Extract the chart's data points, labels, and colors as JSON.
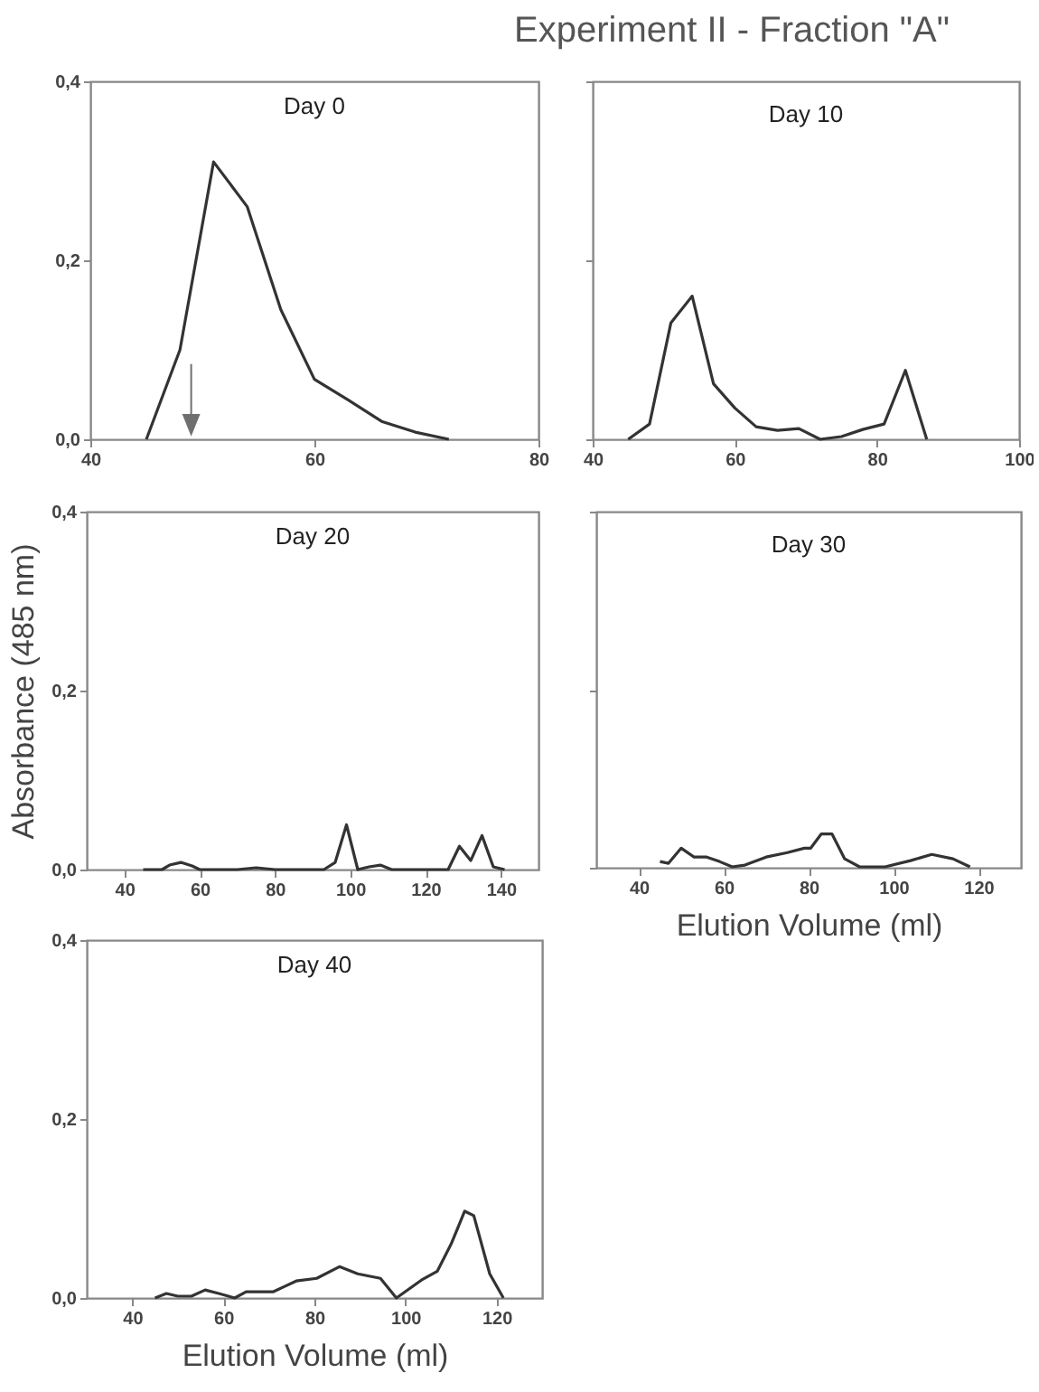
{
  "chart_data": [
    {
      "type": "line",
      "title": "Day 0",
      "annotations": [
        "Experiment II - Fraction \"A\""
      ],
      "x": [
        45,
        48,
        51,
        54,
        57,
        60,
        63,
        66,
        69,
        72
      ],
      "values": [
        0,
        0.1,
        0.31,
        0.26,
        0.145,
        0.067,
        0.044,
        0.02,
        0.008,
        0
      ],
      "color": "#333333",
      "xlim": [
        40,
        80
      ],
      "xticks": [
        40,
        60,
        80
      ],
      "ylim": [
        0,
        0.4
      ],
      "yticks": [
        {
          "value": 0,
          "label": "0,0"
        },
        {
          "value": 0.2,
          "label": "0,2"
        },
        {
          "value": 0.4,
          "label": "0,4"
        }
      ]
    },
    {
      "type": "line",
      "title": "Day 10",
      "x": [
        45,
        48,
        51,
        54,
        57,
        60,
        63,
        66,
        69,
        72,
        75,
        78,
        81,
        84,
        87
      ],
      "values": [
        0,
        0.017,
        0.13,
        0.16,
        0.062,
        0.035,
        0.014,
        0.01,
        0.012,
        0,
        0.003,
        0.011,
        0.017,
        0.077,
        0
      ],
      "color": "#333333",
      "xlim": [
        40,
        100
      ],
      "xticks": [
        40,
        60,
        80,
        100
      ],
      "ylim": [
        0,
        0.4
      ],
      "yticks": [
        {
          "value": 0,
          "label": null
        },
        {
          "value": 0.2,
          "label": null
        },
        {
          "value": 0.4,
          "label": null
        }
      ],
      "tick_labels": "x"
    },
    {
      "type": "line",
      "title": "Day 20",
      "ylabel": "Absorbance (485 nm)",
      "x": [
        45,
        50,
        52,
        55,
        58,
        60,
        70,
        75,
        80,
        93,
        96,
        99,
        102,
        105,
        108,
        111,
        126,
        129,
        132,
        135,
        138,
        141
      ],
      "values": [
        0,
        0,
        0.005,
        0.008,
        0.004,
        0,
        0,
        0.002,
        0,
        0,
        0.008,
        0.05,
        0,
        0.003,
        0.005,
        0,
        0,
        0.026,
        0.01,
        0.038,
        0.003,
        0
      ],
      "color": "#333333",
      "xlim": [
        30,
        150
      ],
      "xticks": [
        40,
        60,
        80,
        100,
        120,
        140
      ],
      "ylim": [
        0,
        0.4
      ],
      "yticks": [
        {
          "value": 0,
          "label": "0,0"
        },
        {
          "value": 0.2,
          "label": "0,2"
        },
        {
          "value": 0.4,
          "label": "0,4"
        }
      ]
    },
    {
      "type": "line",
      "title": "Day 30",
      "xlabel": "Elution Volume (ml)",
      "x": [
        45,
        47,
        50,
        53,
        56,
        59,
        62,
        65,
        70,
        75,
        79,
        80.5,
        83,
        85.5,
        88.5,
        92,
        98,
        104,
        109,
        114,
        118
      ],
      "values": [
        0.007,
        0.005,
        0.022,
        0.012,
        0.012,
        0.007,
        0.001,
        0.003,
        0.012,
        0.017,
        0.022,
        0.022,
        0.038,
        0.038,
        0.01,
        0.001,
        0.001,
        0.008,
        0.015,
        0.01,
        0.001
      ],
      "color": "#333333",
      "xlim": [
        30,
        130
      ],
      "xticks": [
        40,
        60,
        80,
        100,
        120
      ],
      "ylim": [
        0,
        0.4
      ],
      "yticks": [
        {
          "value": 0,
          "label": null
        },
        {
          "value": 0.2,
          "label": null
        },
        {
          "value": 0.4,
          "label": null
        }
      ],
      "tick_labels": "x"
    },
    {
      "type": "line",
      "title": "Day 40",
      "xlabel": "Elution Volume (ml)",
      "x": [
        45,
        47.5,
        50,
        53,
        56,
        59,
        62.5,
        65,
        71,
        73.5,
        76,
        80.5,
        85.5,
        89.5,
        94.5,
        98,
        103.5,
        107,
        110,
        113,
        115,
        118.5,
        121.5
      ],
      "values": [
        0,
        0.005,
        0.002,
        0.002,
        0.009,
        0.005,
        0,
        0.007,
        0.007,
        0.013,
        0.019,
        0.022,
        0.035,
        0.027,
        0.022,
        0,
        0.02,
        0.03,
        0.06,
        0.097,
        0.092,
        0.027,
        0
      ],
      "color": "#333333",
      "xlim": [
        30,
        130
      ],
      "xticks": [
        40,
        60,
        80,
        100,
        120
      ],
      "ylim": [
        0,
        0.4
      ],
      "yticks": [
        {
          "value": 0,
          "label": "0,0"
        },
        {
          "value": 0.2,
          "label": "0,2"
        },
        {
          "value": 0.4,
          "label": "0,4"
        }
      ]
    }
  ]
}
